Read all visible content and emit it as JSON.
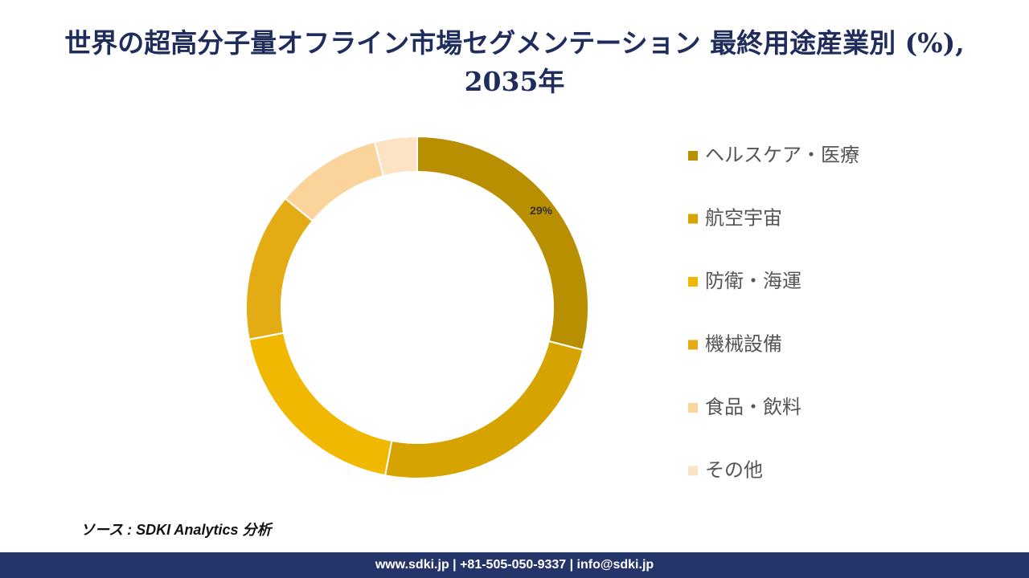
{
  "chart_data": {
    "type": "donut",
    "title": "世界の超高分子量オフライン市場セグメンテーション 最終用途産業別 (%), 2035年",
    "categories": [
      "ヘルスケア・医療",
      "航空宇宙",
      "防衛・海運",
      "機械設備",
      "食品・飲料",
      "その他"
    ],
    "values": [
      29,
      24,
      19,
      14,
      10,
      4
    ],
    "value_labels": [
      "29%",
      null,
      null,
      null,
      null,
      null
    ],
    "colors": [
      "#b88f00",
      "#d6a300",
      "#f0b800",
      "#e3ab14",
      "#fad49b",
      "#fce3c3"
    ],
    "legend": "right",
    "source": "ソース : SDKI Analytics 分析",
    "footer": "www.sdki.jp | +81-505-050-9337 | info@sdki.jp"
  }
}
